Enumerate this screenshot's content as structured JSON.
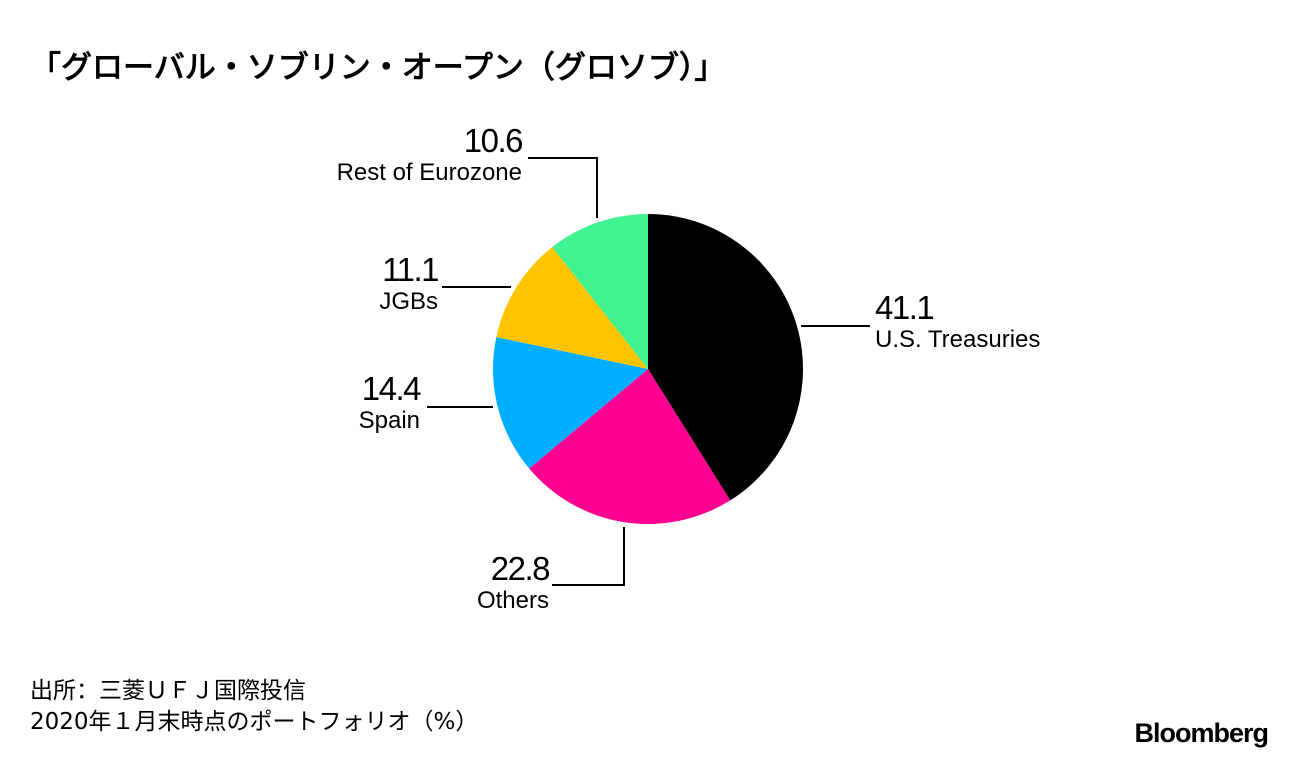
{
  "title": "「グローバル・ソブリン・オープン（グロソブ）」",
  "chart_data": {
    "type": "pie",
    "title": "「グローバル・ソブリン・オープン（グロソブ）」",
    "unit": "%",
    "start_angle": "12 o'clock, clockwise",
    "slices": [
      {
        "label": "U.S. Treasuries",
        "value": 41.1,
        "value_text": "41.1",
        "color": "#000000"
      },
      {
        "label": "Others",
        "value": 22.8,
        "value_text": "22.8",
        "color": "#FF0090"
      },
      {
        "label": "Spain",
        "value": 14.4,
        "value_text": "14.4",
        "color": "#00AEFF"
      },
      {
        "label": "JGBs",
        "value": 11.1,
        "value_text": "11.1",
        "color": "#FFC400"
      },
      {
        "label": "Rest of Eurozone",
        "value": 10.6,
        "value_text": "10.6",
        "color": "#40F290"
      }
    ]
  },
  "footer": {
    "source_line": "出所：三菱ＵＦＪ国際投信",
    "note_line": "2020年１月末時点のポートフォリオ（%）"
  },
  "brand": {
    "logo_text": "Bloomberg"
  }
}
